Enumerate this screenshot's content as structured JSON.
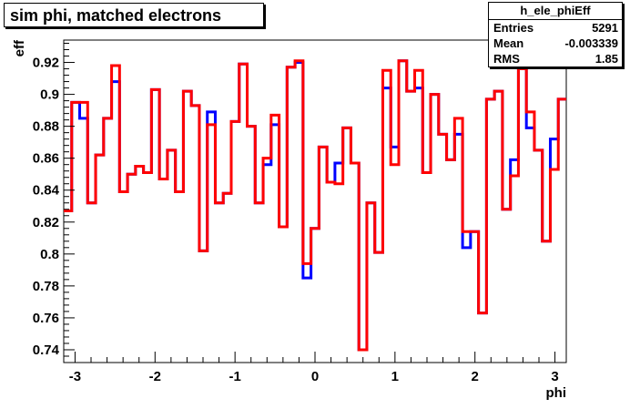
{
  "chart_data": {
    "type": "line",
    "title": "sim phi, matched electrons",
    "xlabel": "phi",
    "ylabel": "eff",
    "xlim": [
      -3.1416,
      3.1416
    ],
    "ylim": [
      0.732,
      0.934
    ],
    "x_ticks": [
      -3,
      -2,
      -1,
      0,
      1,
      2,
      3
    ],
    "y_ticks": [
      0.74,
      0.76,
      0.78,
      0.8,
      0.82,
      0.84,
      0.86,
      0.88,
      0.9,
      0.92
    ],
    "x_tick_labels": [
      "-3",
      "-2",
      "-1",
      "0",
      "1",
      "2",
      "3"
    ],
    "y_tick_labels": [
      "0.74",
      "0.76",
      "0.78",
      "0.8",
      "0.82",
      "0.84",
      "0.86",
      "0.88",
      "0.9",
      "0.92"
    ],
    "series": [
      {
        "color": "#0000ff",
        "values": [
          0.827,
          0.895,
          0.885,
          0.832,
          0.862,
          0.885,
          0.908,
          0.839,
          0.85,
          0.855,
          0.851,
          0.903,
          0.847,
          0.865,
          0.839,
          0.902,
          0.893,
          0.802,
          0.889,
          0.832,
          0.838,
          0.883,
          0.919,
          0.88,
          0.832,
          0.856,
          0.881,
          0.817,
          0.917,
          0.92,
          0.785,
          0.816,
          0.867,
          0.845,
          0.857,
          0.879,
          0.857,
          0.74,
          0.832,
          0.801,
          0.904,
          0.867,
          0.921,
          0.902,
          0.904,
          0.851,
          0.9,
          0.875,
          0.859,
          0.875,
          0.804,
          0.814,
          0.763,
          0.897,
          0.902,
          0.828,
          0.859,
          0.916,
          0.879,
          0.865,
          0.808,
          0.872,
          0.897
        ]
      },
      {
        "color": "#ff0000",
        "values": [
          0.827,
          0.895,
          0.895,
          0.832,
          0.862,
          0.885,
          0.918,
          0.839,
          0.85,
          0.855,
          0.851,
          0.903,
          0.847,
          0.865,
          0.839,
          0.902,
          0.893,
          0.802,
          0.881,
          0.832,
          0.838,
          0.883,
          0.919,
          0.88,
          0.832,
          0.86,
          0.887,
          0.817,
          0.917,
          0.921,
          0.794,
          0.816,
          0.867,
          0.845,
          0.844,
          0.879,
          0.857,
          0.74,
          0.832,
          0.801,
          0.915,
          0.856,
          0.921,
          0.902,
          0.915,
          0.851,
          0.9,
          0.875,
          0.859,
          0.885,
          0.814,
          0.814,
          0.763,
          0.897,
          0.902,
          0.828,
          0.849,
          0.916,
          0.889,
          0.865,
          0.808,
          0.853,
          0.897
        ]
      }
    ]
  },
  "stats": {
    "name": "h_ele_phiEff",
    "rows": [
      {
        "label": "Entries",
        "value": "5291"
      },
      {
        "label": "Mean",
        "value": "-0.003339"
      },
      {
        "label": "RMS",
        "value": "1.85"
      }
    ]
  }
}
